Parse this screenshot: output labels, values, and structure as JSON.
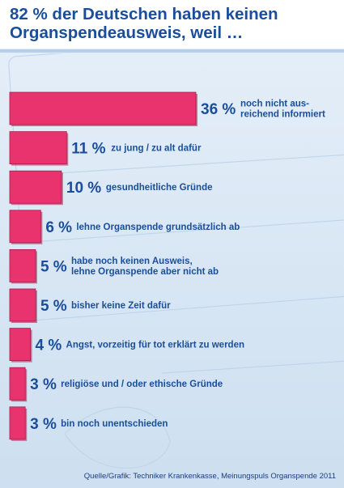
{
  "header": {
    "title": "82 % der Deutschen haben keinen Organspendeausweis, weil …"
  },
  "source": "Quelle/Grafik: Techniker Krankenkasse, Meinungspuls Organspende 2011",
  "colors": {
    "bar": "#e8336f",
    "bar_edge": "#a81d4a",
    "text": "#1a4e9a",
    "background": "#d5e5f4"
  },
  "chart_data": {
    "type": "bar",
    "orientation": "horizontal",
    "title": "82 % der Deutschen haben keinen Organspendeausweis, weil …",
    "unit": "%",
    "categories": [
      "noch nicht aus-\nreichend informiert",
      "zu jung / zu alt dafür",
      "gesundheitliche Gründe",
      "lehne Organspende grundsätzlich ab",
      "habe noch keinen Ausweis,\nlehne Organspende aber nicht ab",
      "bisher keine Zeit dafür",
      "Angst, vorzeitig für tot erklärt zu werden",
      "religiöse und / oder ethische Gründe",
      "bin noch unentschieden"
    ],
    "values": [
      36,
      11,
      10,
      6,
      5,
      5,
      4,
      3,
      3
    ],
    "value_labels": [
      "36 %",
      "11 %",
      "10 %",
      "6 %",
      "5 %",
      "5 %",
      "4 %",
      "3 %",
      "3 %"
    ],
    "xlim": [
      0,
      36
    ],
    "grid": false,
    "legend": "none"
  }
}
